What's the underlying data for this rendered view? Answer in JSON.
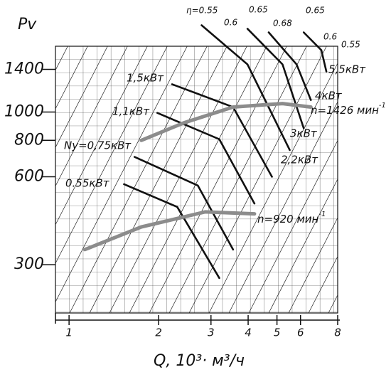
{
  "chart_data": {
    "type": "line",
    "ylabel": "Pv",
    "xlabel": "Q, 10³· м³/ч",
    "xscale": "log",
    "yscale": "log",
    "xlim": [
      0.9,
      8
    ],
    "ylim": [
      205,
      1680
    ],
    "xticks": [
      1,
      2,
      3,
      4,
      5,
      6,
      8
    ],
    "yticks": [
      300,
      600,
      800,
      1000,
      1400
    ],
    "series": [
      {
        "name": "n=1426 мин",
        "name_sup": "-1",
        "color": "#8c8c8c",
        "x": [
          1.75,
          2.43,
          3.56,
          5.22,
          6.5
        ],
        "values": [
          800,
          918,
          1040,
          1069,
          1040
        ]
      },
      {
        "name": "n=920 мин",
        "name_sup": "-1",
        "color": "#8c8c8c",
        "x": [
          1.13,
          1.75,
          2.87,
          4.2
        ],
        "values": [
          338,
          404,
          455,
          448
        ]
      }
    ],
    "power_curves": [
      {
        "label": "0.55кВт",
        "x": [
          1.53,
          2.31,
          3.2
        ],
        "values": [
          566,
          473,
          270
        ]
      },
      {
        "label": "Ny=0,75кВт",
        "x": [
          1.66,
          2.71,
          3.56
        ],
        "values": [
          702,
          560,
          338
        ]
      },
      {
        "label": "1,1кВт",
        "x": [
          1.98,
          3.2,
          4.2
        ],
        "values": [
          993,
          807,
          486
        ]
      },
      {
        "label": "1,5кВт",
        "x": [
          2.22,
          3.56,
          4.81
        ],
        "values": [
          1245,
          1040,
          600
        ]
      },
      {
        "label": "2,2кВт",
        "x": [
          2.79,
          3.98,
          5.52
        ],
        "values": [
          1982,
          1456,
          741
        ]
      },
      {
        "label": "3кВт",
        "x": [
          3.98,
          5.22,
          6.15
        ],
        "values": [
          1928,
          1456,
          880
        ]
      },
      {
        "label": "4кВт",
        "x": [
          4.69,
          5.82,
          6.5
        ],
        "values": [
          1874,
          1456,
          1099
        ]
      },
      {
        "label": "5,5кВт",
        "x": [
          6.15,
          7.05,
          7.33
        ],
        "values": [
          1874,
          1629,
          1376
        ]
      }
    ],
    "efficiency_labels": [
      "η=0.55",
      "0.6",
      "0.65",
      "0.68",
      "0.65",
      "0.6",
      "0.55"
    ]
  }
}
